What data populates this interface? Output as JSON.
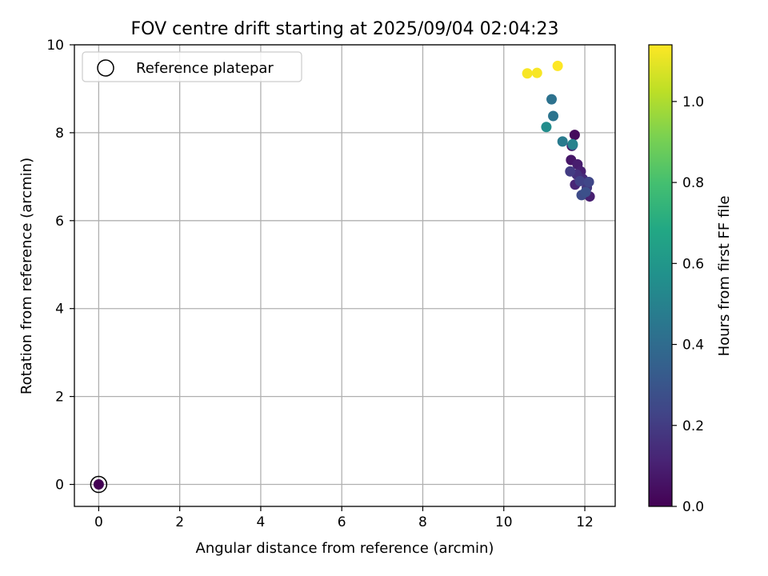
{
  "chart_data": {
    "type": "scatter",
    "title": "FOV centre drift starting at 2025/09/04 02:04:23",
    "xlabel": "Angular distance from reference (arcmin)",
    "ylabel": "Rotation from reference (arcmin)",
    "xlim": [
      -0.6,
      12.75
    ],
    "ylim": [
      -0.5,
      10.0
    ],
    "xticks": [
      0,
      2,
      4,
      6,
      8,
      10,
      12
    ],
    "yticks": [
      0,
      2,
      4,
      6,
      8,
      10
    ],
    "grid": true,
    "legend": {
      "position": "top-left",
      "entries": [
        "Reference platepar"
      ]
    },
    "reference_point": {
      "x": 0,
      "y": 0
    },
    "colorbar": {
      "label": "Hours from first FF file",
      "colormap": "viridis",
      "range": [
        0.0,
        1.14
      ],
      "ticks": [
        0.0,
        0.2,
        0.4,
        0.6,
        0.8,
        1.0
      ]
    },
    "points": [
      {
        "x": 0.0,
        "y": 0.0,
        "c": 0.0
      },
      {
        "x": 11.75,
        "y": 7.95,
        "c": 0.03
      },
      {
        "x": 11.68,
        "y": 7.7,
        "c": 0.05
      },
      {
        "x": 11.66,
        "y": 7.38,
        "c": 0.07
      },
      {
        "x": 11.82,
        "y": 7.28,
        "c": 0.09
      },
      {
        "x": 11.9,
        "y": 7.12,
        "c": 0.1
      },
      {
        "x": 12.12,
        "y": 6.55,
        "c": 0.1
      },
      {
        "x": 11.76,
        "y": 6.82,
        "c": 0.12
      },
      {
        "x": 11.95,
        "y": 6.95,
        "c": 0.14
      },
      {
        "x": 11.8,
        "y": 7.05,
        "c": 0.16
      },
      {
        "x": 12.05,
        "y": 6.75,
        "c": 0.18
      },
      {
        "x": 11.64,
        "y": 7.12,
        "c": 0.2
      },
      {
        "x": 11.88,
        "y": 6.9,
        "c": 0.22
      },
      {
        "x": 12.1,
        "y": 6.88,
        "c": 0.24
      },
      {
        "x": 11.92,
        "y": 6.58,
        "c": 0.26
      },
      {
        "x": 12.02,
        "y": 6.65,
        "c": 0.28
      },
      {
        "x": 11.7,
        "y": 7.72,
        "c": 0.36
      },
      {
        "x": 11.22,
        "y": 8.38,
        "c": 0.44
      },
      {
        "x": 11.18,
        "y": 8.76,
        "c": 0.43
      },
      {
        "x": 11.45,
        "y": 7.8,
        "c": 0.47
      },
      {
        "x": 11.7,
        "y": 7.74,
        "c": 0.5
      },
      {
        "x": 11.05,
        "y": 8.13,
        "c": 0.55
      },
      {
        "x": 10.58,
        "y": 9.35,
        "c": 1.13
      },
      {
        "x": 10.82,
        "y": 9.36,
        "c": 1.13
      },
      {
        "x": 11.33,
        "y": 9.52,
        "c": 1.14
      }
    ]
  }
}
